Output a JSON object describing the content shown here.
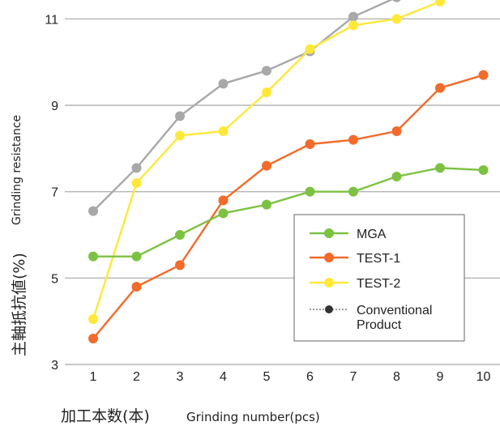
{
  "chart_data": {
    "type": "line",
    "title": "",
    "xlabel_ja": "加工本数(本)",
    "xlabel_en": "Grinding number(pcs)",
    "ylabel_ja": "主軸抵抗値(%)",
    "ylabel_en": "Grinding resistance",
    "x": [
      1,
      2,
      3,
      4,
      5,
      6,
      7,
      8,
      9,
      10
    ],
    "x_tick_labels": [
      "1",
      "2",
      "3",
      "4",
      "5",
      "6",
      "7",
      "8",
      "9",
      "10"
    ],
    "y_ticks": [
      3,
      5,
      7,
      9,
      11
    ],
    "y_tick_labels": [
      "3",
      "5",
      "7",
      "9",
      "11"
    ],
    "ylim": [
      3,
      11.4
    ],
    "grid": true,
    "legend_position": "lower-right",
    "series": [
      {
        "name": "MGA",
        "color": "#7cc242",
        "values": [
          5.5,
          5.5,
          6.0,
          6.5,
          6.7,
          7.0,
          7.0,
          7.35,
          7.55,
          7.5
        ]
      },
      {
        "name": "TEST-1",
        "color": "#f26b2a",
        "values": [
          3.6,
          4.8,
          5.3,
          6.8,
          7.6,
          8.1,
          8.2,
          8.4,
          9.4,
          9.7
        ]
      },
      {
        "name": "TEST-2",
        "color": "#ffe83a",
        "values": [
          4.05,
          7.2,
          8.3,
          8.4,
          9.3,
          10.3,
          10.85,
          11.0,
          11.4,
          null
        ]
      },
      {
        "name": "Conventional Product",
        "name_lines": [
          "Conventional",
          "Product"
        ],
        "color": "#a8a8a8",
        "legend_marker_color": "#333333",
        "values": [
          6.55,
          7.55,
          8.75,
          9.5,
          9.8,
          10.25,
          11.05,
          11.5,
          null,
          null
        ]
      }
    ]
  }
}
